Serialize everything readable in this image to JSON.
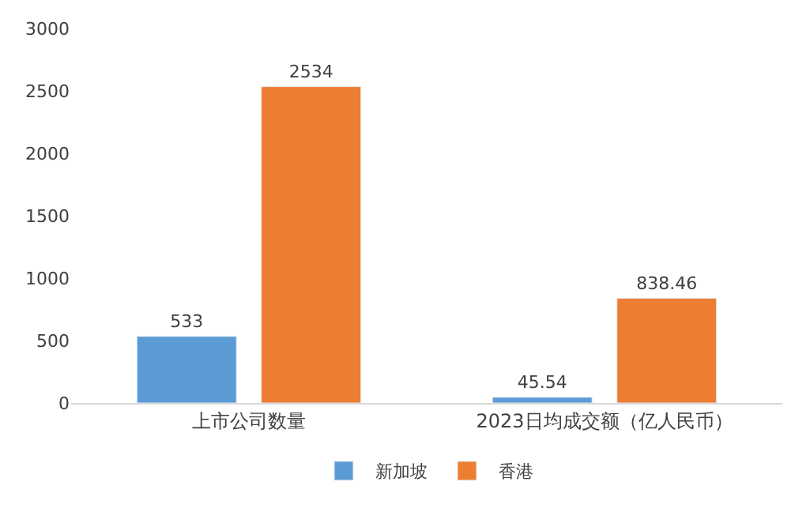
{
  "chart_data": {
    "type": "bar",
    "categories": [
      "上市公司数量",
      "2023日均成交额（亿人民币）"
    ],
    "series": [
      {
        "name": "新加坡",
        "color": "#5b9bd5",
        "values": [
          533,
          45.54
        ]
      },
      {
        "name": "香港",
        "color": "#ed7d31",
        "values": [
          2534,
          838.46
        ]
      }
    ],
    "ylim": [
      0,
      3000
    ],
    "yticks": [
      0,
      500,
      1000,
      1500,
      2000,
      2500,
      3000
    ],
    "grid": false,
    "legend": "bottom",
    "data_labels": true
  }
}
